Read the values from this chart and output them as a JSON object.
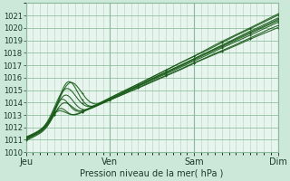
{
  "title": "",
  "xlabel": "Pression niveau de la mer( hPa )",
  "ylabel": "",
  "bg_color": "#cce8d8",
  "plot_bg_color": "#e8f4ee",
  "grid_color": "#88bb99",
  "line_color": "#1a5c1a",
  "marker_color": "#1a5c1a",
  "ylim": [
    1010,
    1022
  ],
  "yticks": [
    1010,
    1011,
    1012,
    1013,
    1014,
    1015,
    1016,
    1017,
    1018,
    1019,
    1020,
    1021
  ],
  "day_labels": [
    "Jeu",
    "Ven",
    "Sam",
    "Dim"
  ],
  "day_positions": [
    0,
    96,
    192,
    288
  ],
  "total_hours": 288,
  "xlabel_fontsize": 7,
  "ytick_fontsize": 6,
  "xtick_fontsize": 7
}
